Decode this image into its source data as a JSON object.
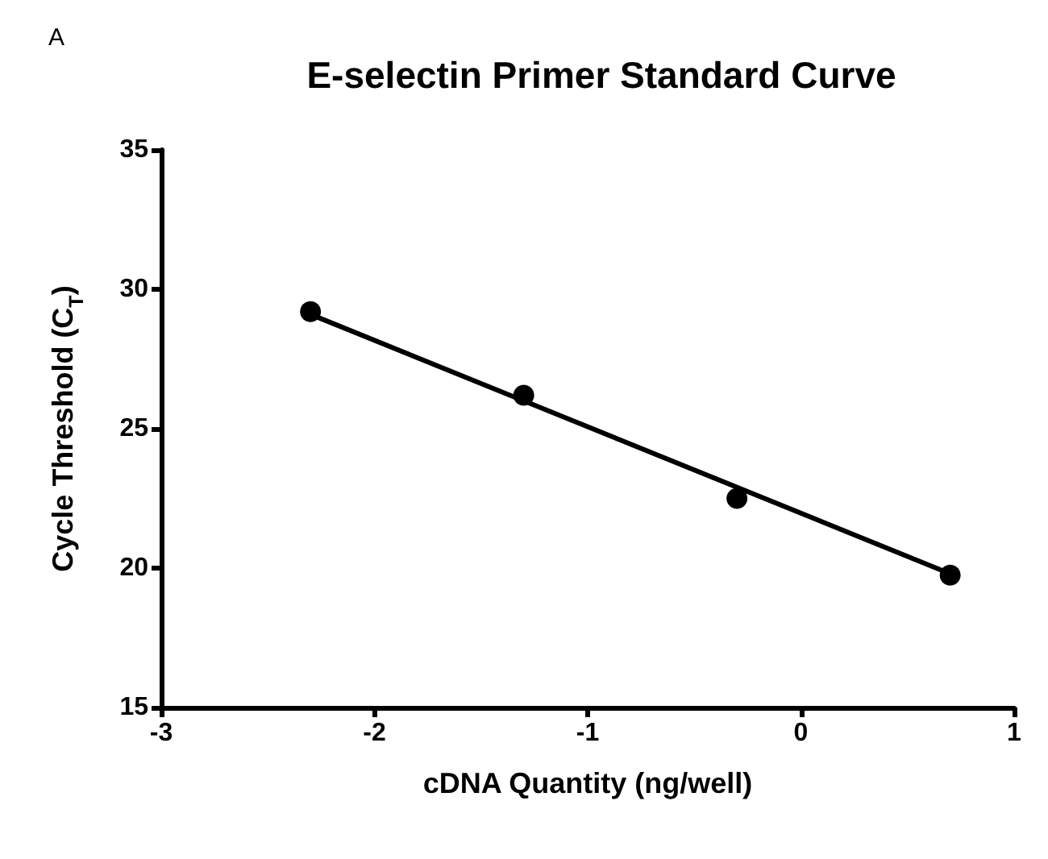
{
  "chart_data": {
    "type": "scatter",
    "title": "E-selectin Primer Standard Curve",
    "xlabel": "cDNA Quantity (ng/well)",
    "ylabel": "Cycle Threshold (C$_{T}$)",
    "annotations": [
      "A"
    ],
    "x": [
      -2.3,
      -1.3,
      -0.3,
      0.7
    ],
    "series": [
      {
        "color": "#000000",
        "marker": "circle",
        "values": [
          29.2,
          26.2,
          22.5,
          19.75
        ]
      },
      {
        "type": "line",
        "color": "#000000",
        "marker": "none",
        "x": [
          -2.3,
          0.7
        ],
        "values": [
          29.1,
          19.8
        ]
      }
    ],
    "xlim": [
      -3,
      1
    ],
    "xticks": [
      -3,
      -2,
      -1,
      0,
      1
    ],
    "ylim": [
      15,
      35
    ],
    "yticks": [
      15,
      20,
      25,
      30,
      35
    ],
    "grid": false
  }
}
